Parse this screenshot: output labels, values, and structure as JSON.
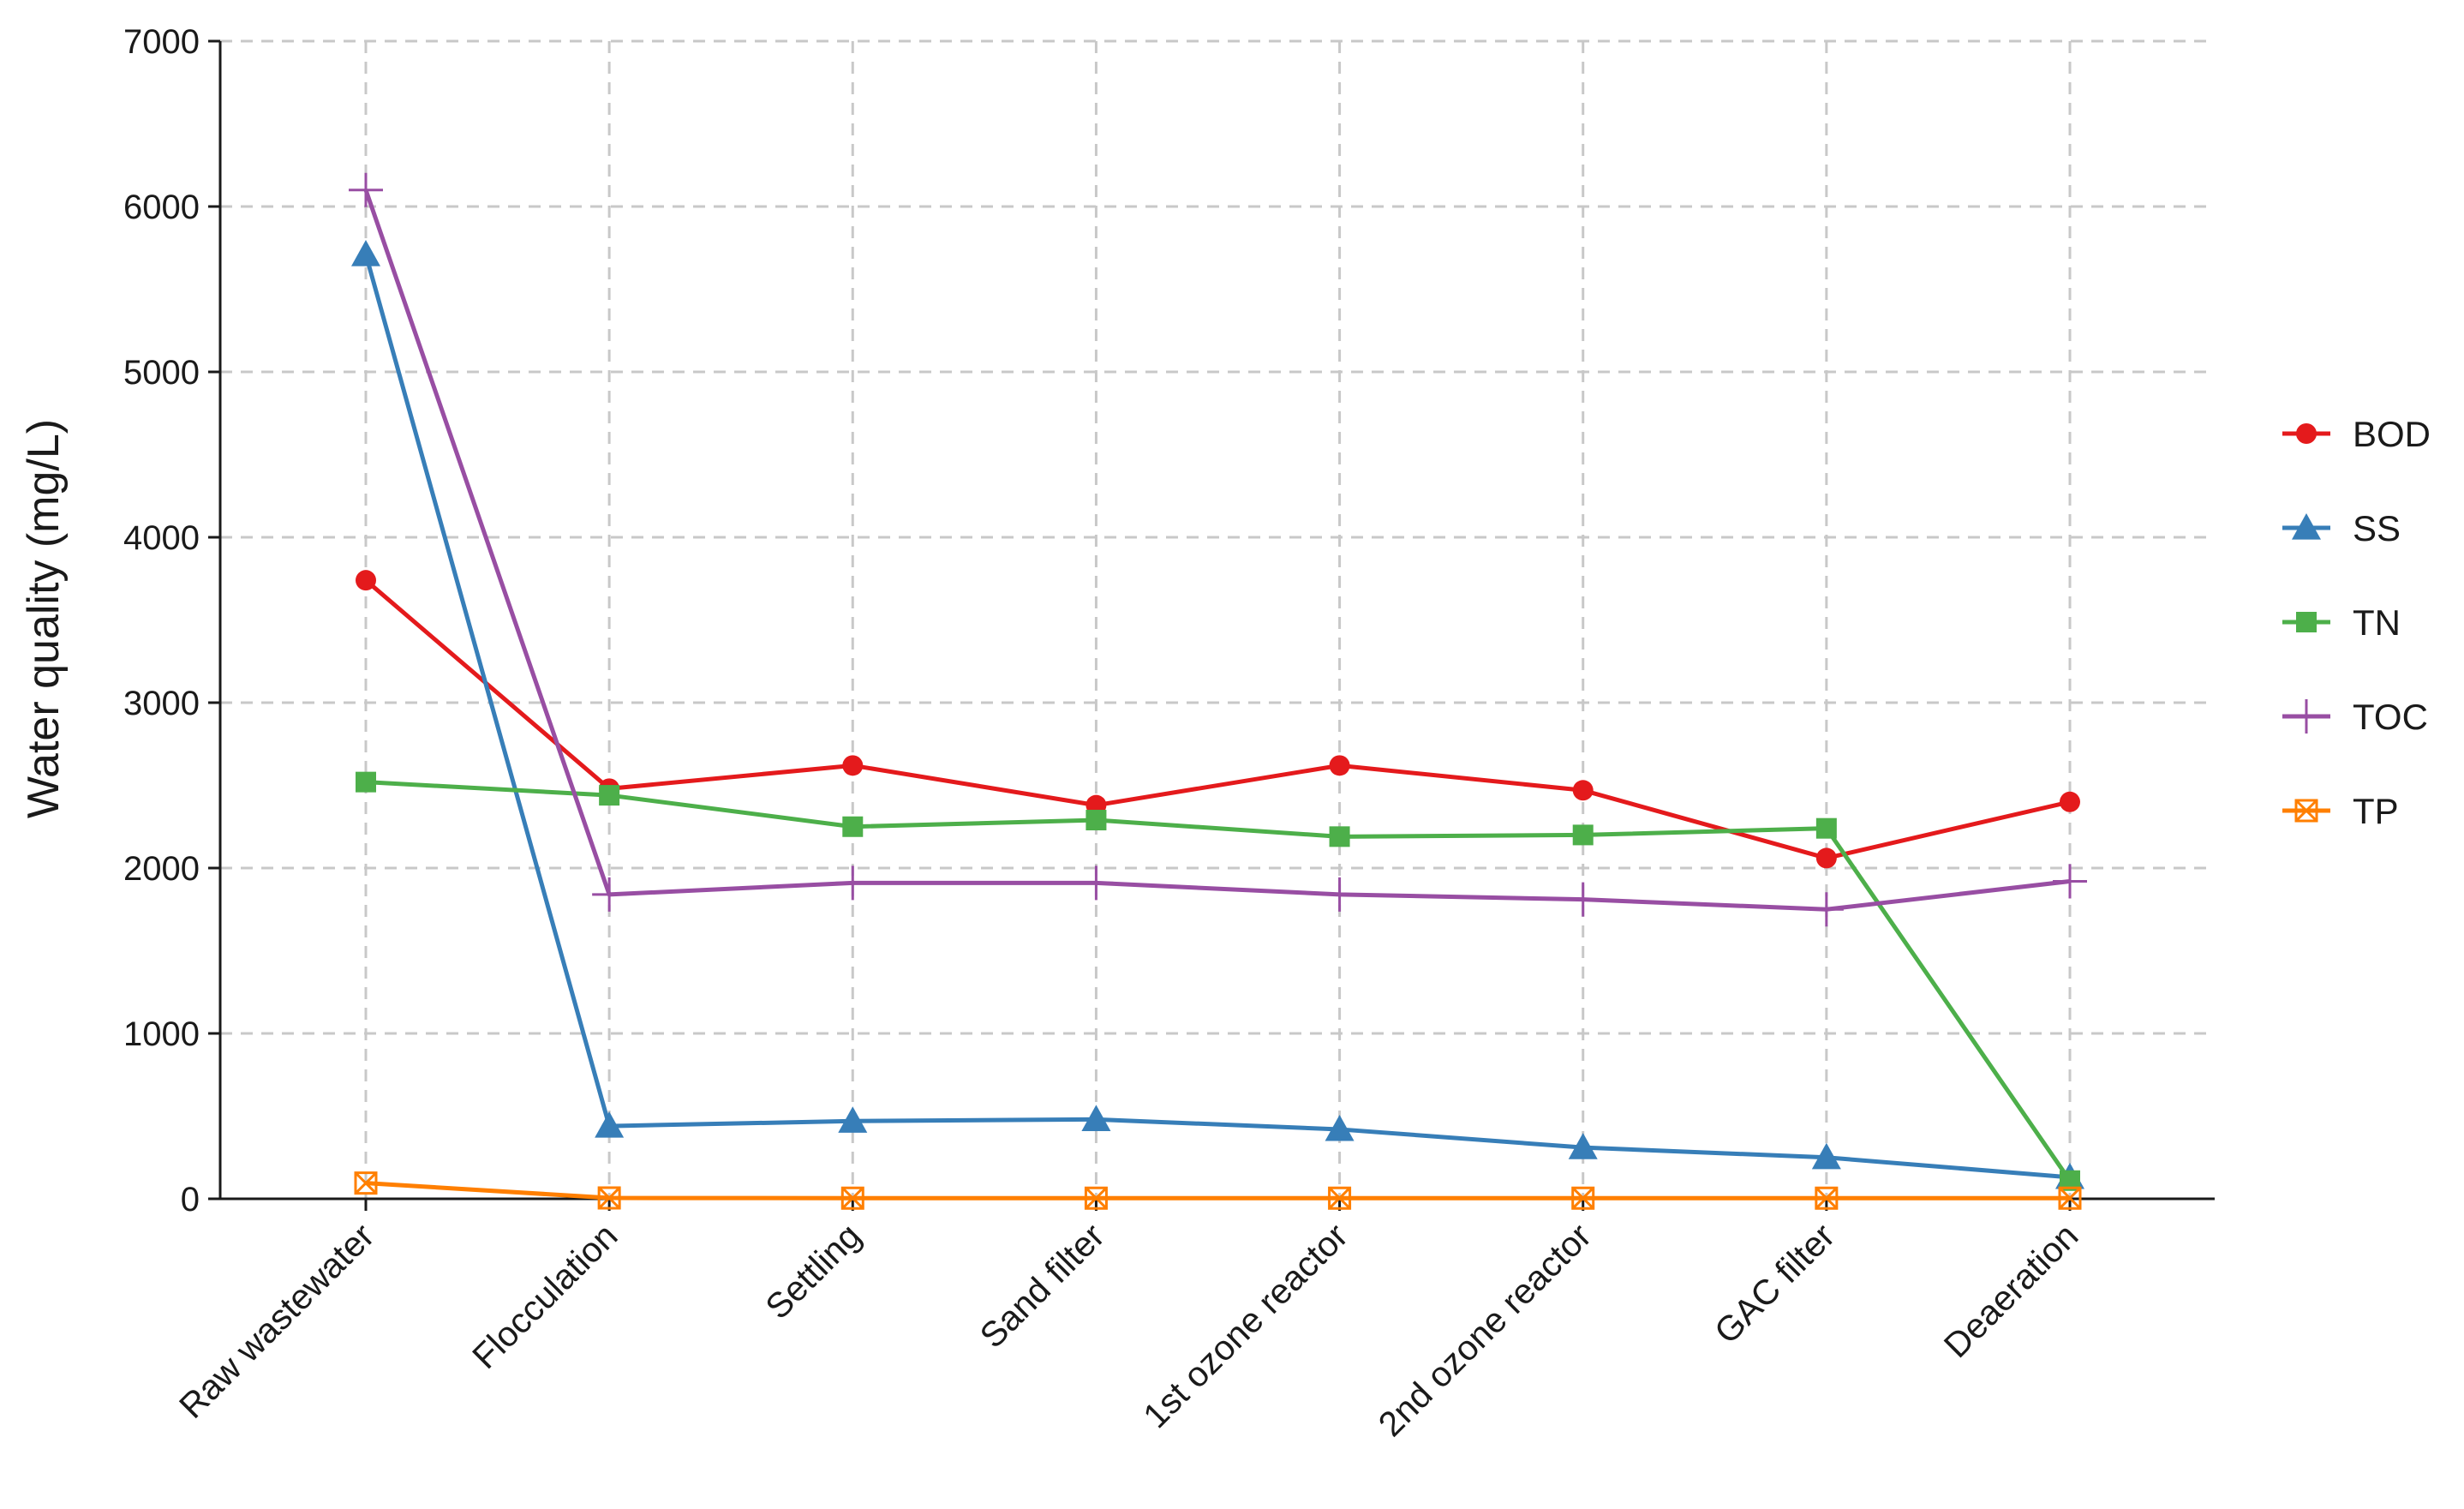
{
  "chart_data": {
    "type": "line",
    "title": "",
    "xlabel": "",
    "ylabel": "Water quality (mg/L)",
    "ylim": [
      0,
      7000
    ],
    "yticks": [
      0,
      1000,
      2000,
      3000,
      4000,
      5000,
      6000,
      7000
    ],
    "grid": true,
    "legend_position": "right",
    "categories": [
      "Raw wastewater",
      "Flocculation",
      "Settling",
      "Sand filter",
      "1st ozone reactor",
      "2nd ozone reactor",
      "GAC filter",
      "Deaeration"
    ],
    "series": [
      {
        "name": "BOD",
        "color": "#e41a1c",
        "marker": "circle",
        "values": [
          3740,
          2480,
          2620,
          2380,
          2620,
          2470,
          2060,
          2400
        ]
      },
      {
        "name": "SS",
        "color": "#377eb8",
        "marker": "triangle",
        "values": [
          5710,
          440,
          470,
          480,
          420,
          310,
          250,
          130
        ]
      },
      {
        "name": "TN",
        "color": "#4daf4a",
        "marker": "square",
        "values": [
          2520,
          2440,
          2250,
          2290,
          2190,
          2200,
          2240,
          110
        ]
      },
      {
        "name": "TOC",
        "color": "#984ea3",
        "marker": "plus",
        "values": [
          6100,
          1840,
          1910,
          1910,
          1840,
          1810,
          1750,
          1920
        ]
      },
      {
        "name": "TP",
        "color": "#ff7f00",
        "marker": "square-cross",
        "values": [
          95,
          5,
          4,
          4,
          4,
          4,
          4,
          4
        ]
      }
    ]
  }
}
